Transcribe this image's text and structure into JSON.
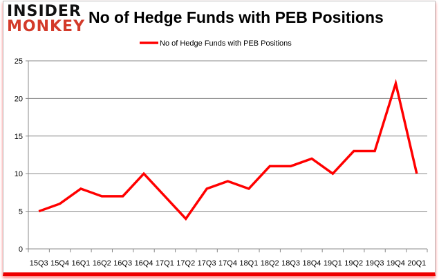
{
  "logo": {
    "line1": "INSIDER",
    "line2": "MONKEY"
  },
  "chart_data": {
    "type": "line",
    "title": "No of Hedge Funds with PEB Positions",
    "categories": [
      "15Q3",
      "15Q4",
      "16Q1",
      "16Q2",
      "16Q3",
      "16Q4",
      "17Q1",
      "17Q2",
      "17Q3",
      "17Q4",
      "18Q1",
      "18Q2",
      "18Q3",
      "18Q4",
      "19Q1",
      "19Q2",
      "19Q3",
      "19Q4",
      "20Q1"
    ],
    "series": [
      {
        "name": "No of Hedge Funds with PEB Positions",
        "color": "#ff0000",
        "values": [
          5,
          6,
          8,
          7,
          7,
          10,
          7,
          4,
          8,
          9,
          8,
          11,
          11,
          12,
          10,
          13,
          13,
          22,
          10
        ]
      }
    ],
    "ylim": [
      0,
      25
    ],
    "yticks": [
      0,
      5,
      10,
      15,
      20,
      25
    ],
    "grid": true,
    "legend": "top-center",
    "xlabel": "",
    "ylabel": ""
  }
}
